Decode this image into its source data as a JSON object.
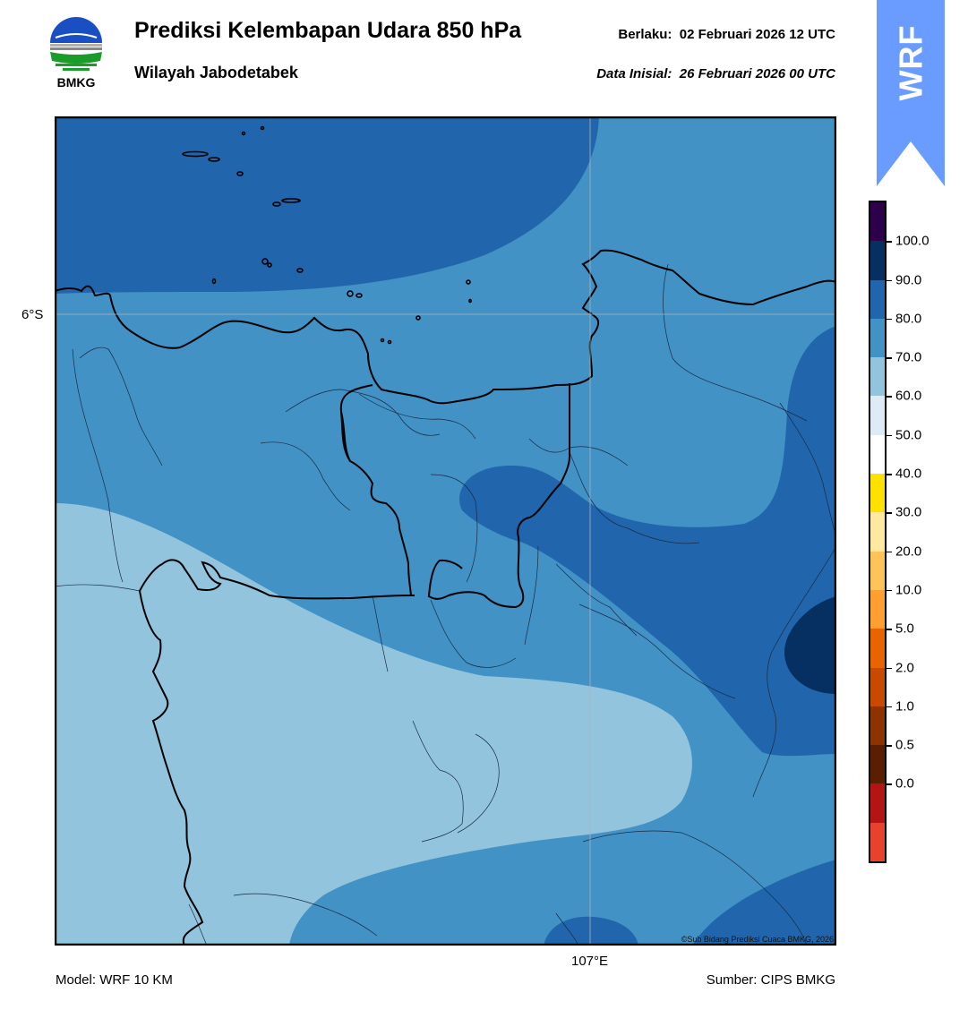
{
  "header": {
    "title": "Prediksi Kelembapan Udara 850 hPa",
    "region": "Wilayah Jabodetabek",
    "valid_label": "Berlaku:",
    "valid_time": "02 Februari 2026 12 UTC",
    "init_label": "Data Inisial:",
    "init_time": "26 Februari 2026 00 UTC"
  },
  "logo": {
    "text": "BMKG",
    "icon": "bmkg-logo-icon"
  },
  "badge": {
    "text": "WRF",
    "color": "#6a9cff"
  },
  "map": {
    "lat_label": "6°S",
    "lon_label": "107°E",
    "copyright": "©Sub Bidang Prediksi Cuaca BMKG, 2026",
    "fill_colors": {
      "60-70": "#92c4de",
      "70-80": "#4292c6",
      "80-90": "#2166ac",
      "90-100": "#053061"
    }
  },
  "footer": {
    "model": "Model: WRF 10 KM",
    "source": "Sumber: CIPS BMKG"
  },
  "colorbar": {
    "labels": [
      "100.0",
      "90.0",
      "80.0",
      "70.0",
      "60.0",
      "50.0",
      "40.0",
      "30.0",
      "20.0",
      "10.0",
      "5.0",
      "2.0",
      "1.0",
      "0.5",
      "0.0"
    ],
    "segments": [
      "#2d004b",
      "#053061",
      "#2166ac",
      "#4292c6",
      "#92c4de",
      "#deebf7",
      "#ffffff",
      "#ffe100",
      "#ffe8a0",
      "#ffc35a",
      "#ff9f30",
      "#e86400",
      "#c84a00",
      "#8c3300",
      "#5a1e00",
      "#b41414",
      "#e8422e"
    ]
  }
}
